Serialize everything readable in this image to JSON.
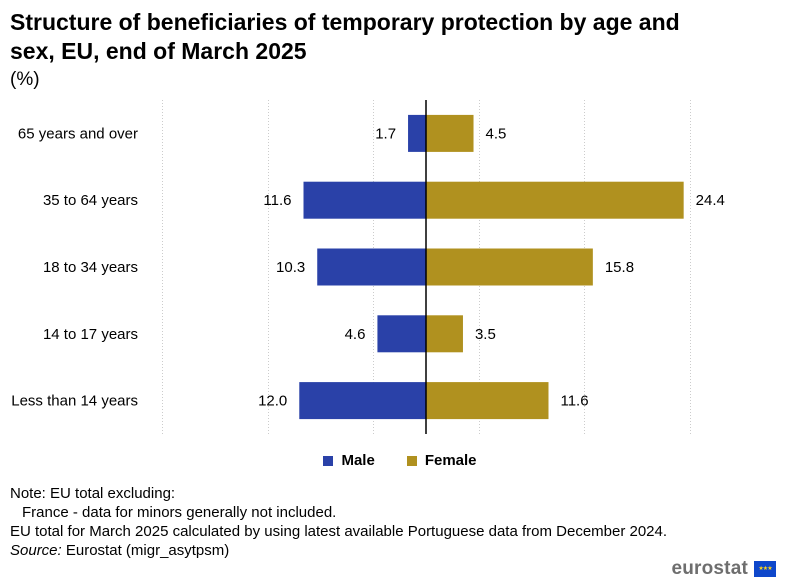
{
  "title": "Structure of beneficiaries of temporary protection by age and sex, EU, end of March 2025",
  "subtitle": "(%)",
  "colors": {
    "male": "#2a41a8",
    "female": "#b0911f",
    "grid": "#cccccc",
    "axis": "#000000"
  },
  "chart_data": {
    "type": "bar",
    "orientation": "horizontal",
    "style": "population-pyramid",
    "categories": [
      "65 years and over",
      "35 to 64 years",
      "18 to 34 years",
      "14 to 17 years",
      "Less than 14 years"
    ],
    "series": [
      {
        "name": "Male",
        "values": [
          1.7,
          11.6,
          10.3,
          4.6,
          12.0
        ],
        "labels": [
          "1.7",
          "11.6",
          "10.3",
          "4.6",
          "12.0"
        ]
      },
      {
        "name": "Female",
        "values": [
          4.5,
          24.4,
          15.8,
          3.5,
          11.6
        ],
        "labels": [
          "4.5",
          "24.4",
          "15.8",
          "3.5",
          "11.6"
        ]
      }
    ],
    "xlim": [
      -25,
      25
    ],
    "gridlines": [
      -25,
      -15,
      -5,
      5,
      15,
      25
    ],
    "legend_position": "bottom-center"
  },
  "legend": {
    "male_label": "Male",
    "female_label": "Female"
  },
  "notes": {
    "line1": "Note: EU total excluding:",
    "line2": "France - data for minors generally not included.",
    "line3": "EU total for March 2025 calculated by using latest available Portuguese data from December 2024.",
    "source_label": "Source:",
    "source_text": "Eurostat (migr_asytpsm)"
  },
  "brand": {
    "name": "eurostat",
    "flag_icon": "eu-flag-icon"
  }
}
